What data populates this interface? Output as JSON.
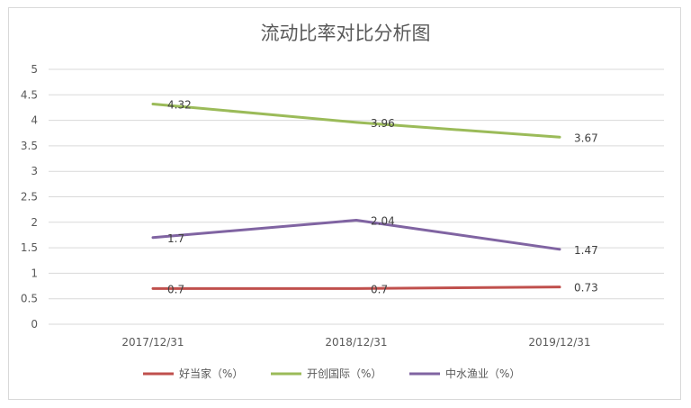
{
  "chart_data": {
    "type": "line",
    "title": "流动比率对比分析图",
    "xlabel": "",
    "ylabel": "",
    "categories": [
      "2017/12/31",
      "2018/12/31",
      "2019/12/31"
    ],
    "ylim": [
      0,
      5
    ],
    "yticks": [
      0,
      0.5,
      1,
      1.5,
      2,
      2.5,
      3,
      3.5,
      4,
      4.5,
      5
    ],
    "ytick_labels": [
      "0",
      "0.5",
      "1",
      "1.5",
      "2",
      "2.5",
      "3",
      "3.5",
      "4",
      "4.5",
      "5"
    ],
    "grid": true,
    "legend_position": "bottom",
    "series": [
      {
        "name": "好当家（%）",
        "color": "#C0504D",
        "values": [
          0.7,
          0.7,
          0.73
        ],
        "labels": [
          "0.7",
          "0.7",
          "0.73"
        ]
      },
      {
        "name": "开创国际（%）",
        "color": "#9BBB59",
        "values": [
          4.32,
          3.96,
          3.67
        ],
        "labels": [
          "4.32",
          "3.96",
          "3.67"
        ]
      },
      {
        "name": "中水渔业（%）",
        "color": "#8064A2",
        "values": [
          1.7,
          2.04,
          1.47
        ],
        "labels": [
          "1.7",
          "2.04",
          "1.47"
        ]
      }
    ]
  }
}
